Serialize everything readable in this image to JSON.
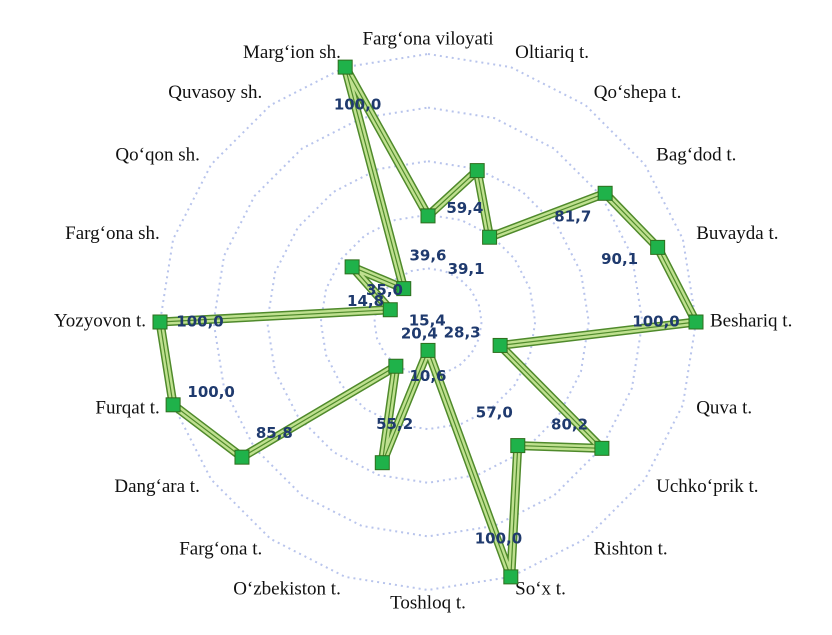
{
  "chart_data": {
    "type": "radar",
    "categories": [
      "Farg‘ona viloyati",
      "Oltiariq t.",
      "Qo‘shepa t.",
      "Bag‘dod t.",
      "Buvayda t.",
      "Beshariq t.",
      "Quva t.",
      "Uchko‘prik t.",
      "Rishton t.",
      "So‘x t.",
      "Toshloq t.",
      "O‘zbekiston t.",
      "Farg‘ona t.",
      "Dang‘ara t.",
      "Furqat t.",
      "Yozyovon t.",
      "Farg‘ona sh.",
      "Qo‘qon sh.",
      "Quvasoy sh.",
      "Marg‘ion sh."
    ],
    "values": [
      39.6,
      59.4,
      39.1,
      81.7,
      90.1,
      100.0,
      28.3,
      80.2,
      57.0,
      100.0,
      10.6,
      55.2,
      20.4,
      85.8,
      100.0,
      100.0,
      14.8,
      35.0,
      15.4,
      100.0
    ],
    "value_labels": [
      "39,6",
      "59,4",
      "39,1",
      "81,7",
      "90,1",
      "100,0",
      "28,3",
      "80,2",
      "57,0",
      "100,0",
      "10,6",
      "55,2",
      "20,4",
      "85,8",
      "100,0",
      "100,0",
      "14,8",
      "35,0",
      "15,4",
      "100,0"
    ],
    "color": "#4f8a2b",
    "ylim": [
      0,
      100
    ],
    "yticks": [
      0,
      20,
      40,
      60,
      80,
      100
    ],
    "grid": true
  }
}
